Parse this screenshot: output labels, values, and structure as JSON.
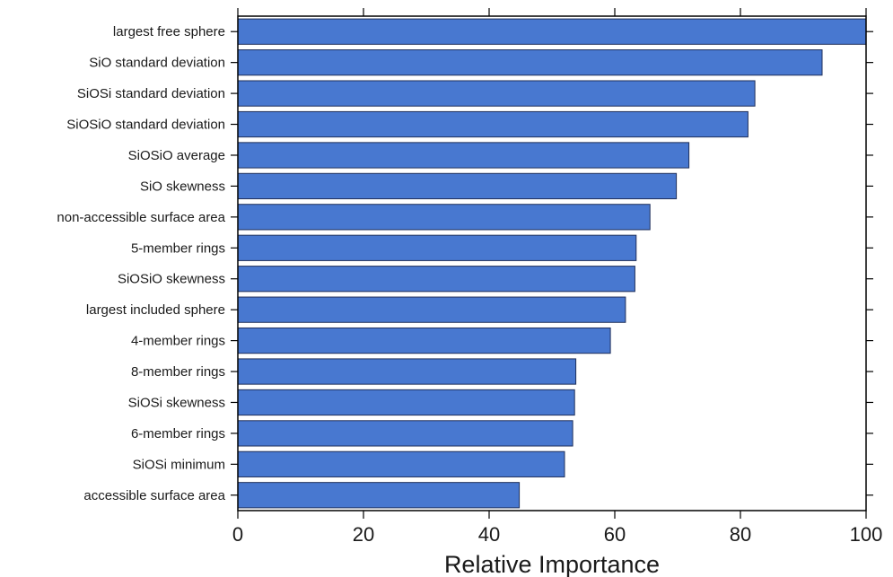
{
  "chart_data": {
    "type": "bar",
    "orientation": "horizontal",
    "categories": [
      "largest free sphere",
      "SiO standard deviation",
      "SiOSi standard deviation",
      "SiOSiO standard deviation",
      "SiOSiO average",
      "SiO skewness",
      "non-accessible surface area",
      "5-member rings",
      "SiOSiO skewness",
      "largest included sphere",
      "4-member rings",
      "8-member rings",
      "SiOSi skewness",
      "6-member rings",
      "SiOSi minimum",
      "accessible surface area"
    ],
    "values": [
      100,
      93,
      82.3,
      81.2,
      71.8,
      69.8,
      65.6,
      63.4,
      63.2,
      61.7,
      59.3,
      53.8,
      53.6,
      53.3,
      52.0,
      44.8
    ],
    "title": "",
    "xlabel": "Relative Importance",
    "ylabel": "",
    "xlim": [
      0,
      100
    ],
    "xticks": [
      "0",
      "20",
      "40",
      "60",
      "80",
      "100"
    ],
    "grid": false,
    "bar_color": "#4878d0"
  }
}
